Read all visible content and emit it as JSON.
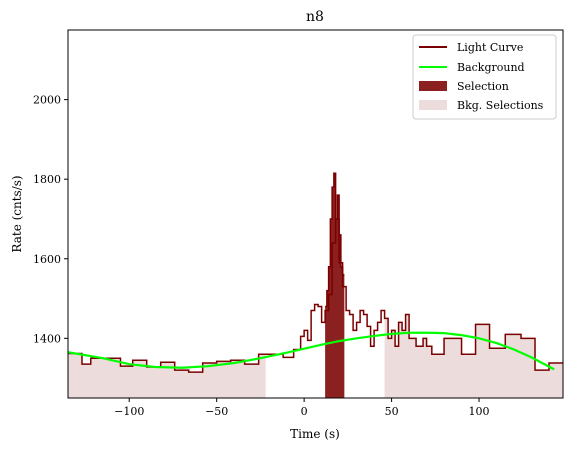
{
  "chart_data": {
    "type": "line",
    "title": "n8",
    "xlabel": "Time (s)",
    "ylabel": "Rate (cnts/s)",
    "xlim": [
      -135,
      148
    ],
    "ylim": [
      1250,
      2175
    ],
    "xticks": [
      -100,
      -50,
      0,
      50,
      100
    ],
    "yticks": [
      1400,
      1600,
      1800,
      2000
    ],
    "tick_labels_x": [
      "−100",
      "−50",
      "0",
      "50",
      "100"
    ],
    "tick_labels_y": [
      "1400",
      "1600",
      "1800",
      "2000"
    ],
    "legend": {
      "position": "top-right",
      "entries": [
        {
          "label": "Light Curve",
          "color": "#7a0000",
          "kind": "line"
        },
        {
          "label": "Background",
          "color": "#00ff00",
          "kind": "line"
        },
        {
          "label": "Selection",
          "color": "#8b2020",
          "kind": "patch"
        },
        {
          "label": "Bkg. Selections",
          "color": "#eddcdc",
          "kind": "patch"
        }
      ]
    },
    "light_curve": {
      "name": "Light Curve",
      "color": "#7a0000",
      "edges": [
        -135,
        -127,
        -122,
        -113,
        -105,
        -98,
        -90,
        -82,
        -74,
        -66,
        -58,
        -50,
        -42,
        -34,
        -26,
        -20,
        -12,
        -6,
        -2,
        0,
        2,
        4,
        6,
        8,
        10,
        12,
        14,
        16,
        18,
        20,
        22,
        24,
        26,
        28,
        30,
        32,
        34,
        36,
        38,
        40,
        42,
        44,
        46,
        48,
        50,
        52,
        54,
        56,
        58,
        60,
        62,
        64,
        66,
        68,
        70,
        73,
        80,
        90,
        98,
        106,
        115,
        124,
        132,
        140,
        148
      ],
      "values": [
        1362,
        1335,
        1350,
        1350,
        1330,
        1345,
        1328,
        1340,
        1320,
        1315,
        1338,
        1342,
        1345,
        1335,
        1360,
        1360,
        1352,
        1372,
        1405,
        1420,
        1395,
        1470,
        1485,
        1480,
        1440,
        1470,
        1510,
        1640,
        1700,
        1590,
        1530,
        1470,
        1460,
        1420,
        1440,
        1470,
        1460,
        1430,
        1380,
        1420,
        1440,
        1470,
        1450,
        1400,
        1420,
        1380,
        1440,
        1420,
        1460,
        1400,
        1400,
        1380,
        1380,
        1400,
        1380,
        1360,
        1400,
        1360,
        1435,
        1375,
        1410,
        1400,
        1320,
        1338
      ]
    },
    "selection_curve": {
      "name": "Selection",
      "color": "#8b2020",
      "x_range": [
        12,
        23
      ],
      "edges": [
        12,
        13,
        14,
        15,
        16,
        17,
        18,
        19,
        20,
        21,
        22,
        23
      ],
      "values": [
        1480,
        1520,
        1580,
        1700,
        1780,
        1815,
        1700,
        1760,
        1660,
        1580,
        1560
      ]
    },
    "background": {
      "name": "Background",
      "color": "#00ff00",
      "x": [
        -135,
        -115,
        -100,
        -85,
        -70,
        -55,
        -40,
        -25,
        -10,
        0,
        10,
        20,
        30,
        40,
        50,
        60,
        70,
        80,
        90,
        100,
        110,
        120,
        130,
        143
      ],
      "y": [
        1365,
        1350,
        1335,
        1328,
        1326,
        1330,
        1338,
        1350,
        1364,
        1374,
        1384,
        1393,
        1400,
        1406,
        1411,
        1414,
        1414,
        1413,
        1408,
        1400,
        1388,
        1372,
        1352,
        1322
      ]
    },
    "bkg_selections": {
      "name": "Bkg. Selections",
      "color": "#eddcdc",
      "ranges": [
        [
          -135,
          -22
        ],
        [
          46,
          148
        ]
      ]
    }
  }
}
